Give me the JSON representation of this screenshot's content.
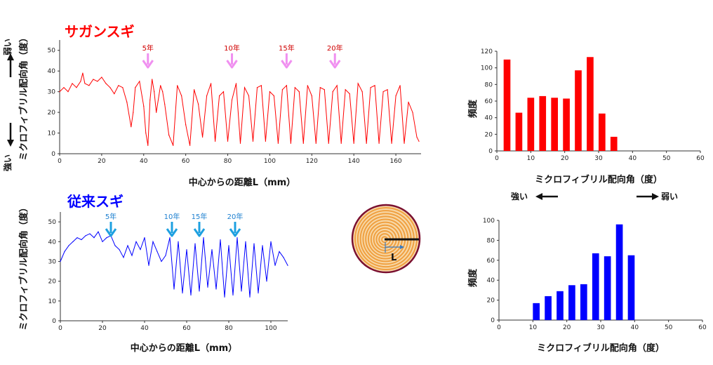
{
  "labels": {
    "strong": "強い",
    "weak": "弱い",
    "circle_L": "L"
  },
  "colors": {
    "sagan": "#ff0000",
    "conv": "#0000ff",
    "sagan_arrow": "#f090f0",
    "conv_arrow": "#1ea0e0",
    "ring": "#f0a040",
    "log_bg": "#f7d8a8",
    "log_edge": "#7a1030"
  },
  "chart_data": [
    {
      "id": "sagan_line",
      "type": "line",
      "title": "サガンスギ",
      "xlabel": "中心からの距離L（mm）",
      "ylabel": "ミクロフィブリル配向角（度）",
      "xlim": [
        0,
        172
      ],
      "ylim": [
        0,
        55
      ],
      "xticks": [
        0,
        20,
        40,
        60,
        80,
        100,
        120,
        140,
        160
      ],
      "yticks": [
        0,
        10,
        20,
        30,
        40,
        50
      ],
      "annotations": [
        {
          "label": "5年",
          "x": 42
        },
        {
          "label": "10年",
          "x": 82
        },
        {
          "label": "15年",
          "x": 108
        },
        {
          "label": "20年",
          "x": 131
        }
      ],
      "x": [
        0,
        2,
        4,
        6,
        8,
        10,
        11,
        12,
        14,
        16,
        18,
        20,
        22,
        24,
        26,
        28,
        30,
        32,
        34,
        35,
        36,
        38,
        40,
        41,
        42,
        43,
        44,
        45,
        46,
        48,
        49,
        50,
        52,
        54,
        56,
        58,
        60,
        62,
        64,
        66,
        68,
        70,
        72,
        74,
        76,
        78,
        80,
        82,
        84,
        86,
        88,
        90,
        92,
        94,
        96,
        98,
        100,
        102,
        104,
        106,
        108,
        110,
        112,
        114,
        116,
        118,
        120,
        122,
        124,
        126,
        128,
        130,
        132,
        134,
        136,
        138,
        140,
        142,
        144,
        146,
        148,
        150,
        152,
        154,
        156,
        158,
        160,
        162,
        164,
        166,
        168,
        170,
        171
      ],
      "y": [
        30,
        32,
        30,
        34,
        32,
        35,
        39,
        34,
        33,
        36,
        35,
        37,
        34,
        32,
        29,
        33,
        32,
        25,
        13,
        20,
        32,
        35,
        23,
        10,
        4,
        26,
        36,
        30,
        20,
        33,
        30,
        24,
        9,
        4,
        33,
        28,
        14,
        4,
        31,
        24,
        8,
        28,
        34,
        6,
        28,
        30,
        6,
        26,
        34,
        5,
        32,
        28,
        6,
        32,
        33,
        6,
        30,
        28,
        5,
        31,
        33,
        5,
        32,
        30,
        5,
        33,
        28,
        5,
        32,
        31,
        5,
        30,
        33,
        5,
        31,
        29,
        5,
        34,
        30,
        5,
        32,
        33,
        5,
        30,
        31,
        5,
        28,
        33,
        5,
        25,
        20,
        8,
        6
      ]
    },
    {
      "id": "conv_line",
      "type": "line",
      "title": "従来スギ",
      "xlabel": "中心からの距離L（mm）",
      "ylabel": "ミクロフィブリル配向角（度）",
      "xlim": [
        0,
        108
      ],
      "ylim": [
        0,
        55
      ],
      "xticks": [
        0,
        20,
        40,
        60,
        80,
        100
      ],
      "yticks": [
        0,
        10,
        20,
        30,
        40,
        50
      ],
      "annotations": [
        {
          "label": "5年",
          "x": 24
        },
        {
          "label": "10年",
          "x": 53
        },
        {
          "label": "15年",
          "x": 66
        },
        {
          "label": "20年",
          "x": 83
        }
      ],
      "x": [
        0,
        2,
        4,
        6,
        8,
        10,
        12,
        14,
        16,
        18,
        20,
        22,
        24,
        26,
        28,
        30,
        32,
        34,
        36,
        38,
        40,
        42,
        44,
        46,
        48,
        50,
        52,
        54,
        56,
        58,
        60,
        62,
        64,
        66,
        68,
        70,
        72,
        74,
        76,
        78,
        80,
        82,
        84,
        86,
        88,
        90,
        92,
        94,
        96,
        98,
        100,
        102,
        104,
        106,
        108
      ],
      "y": [
        30,
        35,
        38,
        40,
        42,
        41,
        43,
        44,
        42,
        45,
        40,
        42,
        43,
        38,
        36,
        32,
        38,
        33,
        40,
        36,
        42,
        28,
        40,
        35,
        30,
        33,
        42,
        16,
        40,
        14,
        36,
        13,
        39,
        15,
        42,
        17,
        36,
        16,
        41,
        12,
        38,
        13,
        42,
        15,
        40,
        12,
        39,
        14,
        38,
        20,
        40,
        28,
        35,
        32,
        28
      ]
    },
    {
      "id": "sagan_hist",
      "type": "bar",
      "xlabel": "ミクロフィブリル配向角（度）",
      "ylabel": "頻度",
      "xlim": [
        0,
        60
      ],
      "ylim": [
        0,
        120
      ],
      "xticks": [
        0,
        10,
        20,
        30,
        40,
        50,
        60
      ],
      "yticks": [
        0,
        20,
        40,
        60,
        80,
        100,
        120
      ],
      "x": [
        3,
        6.5,
        10,
        13.5,
        17,
        20.5,
        24,
        27.5,
        31,
        34.5
      ],
      "values": [
        110,
        46,
        64,
        66,
        64,
        63,
        97,
        113,
        45,
        17
      ]
    },
    {
      "id": "conv_hist",
      "type": "bar",
      "xlabel": "ミクロフィブリル配向角（度）",
      "ylabel": "頻度",
      "xlim": [
        0,
        60
      ],
      "ylim": [
        0,
        100
      ],
      "xticks": [
        0,
        10,
        20,
        30,
        40,
        50,
        60
      ],
      "yticks": [
        0,
        20,
        40,
        60,
        80,
        100
      ],
      "x": [
        11,
        14.5,
        18,
        21.5,
        25,
        28.5,
        32,
        35.5,
        39
      ],
      "values": [
        17,
        24,
        29,
        35,
        36,
        67,
        64,
        96,
        65
      ]
    }
  ]
}
